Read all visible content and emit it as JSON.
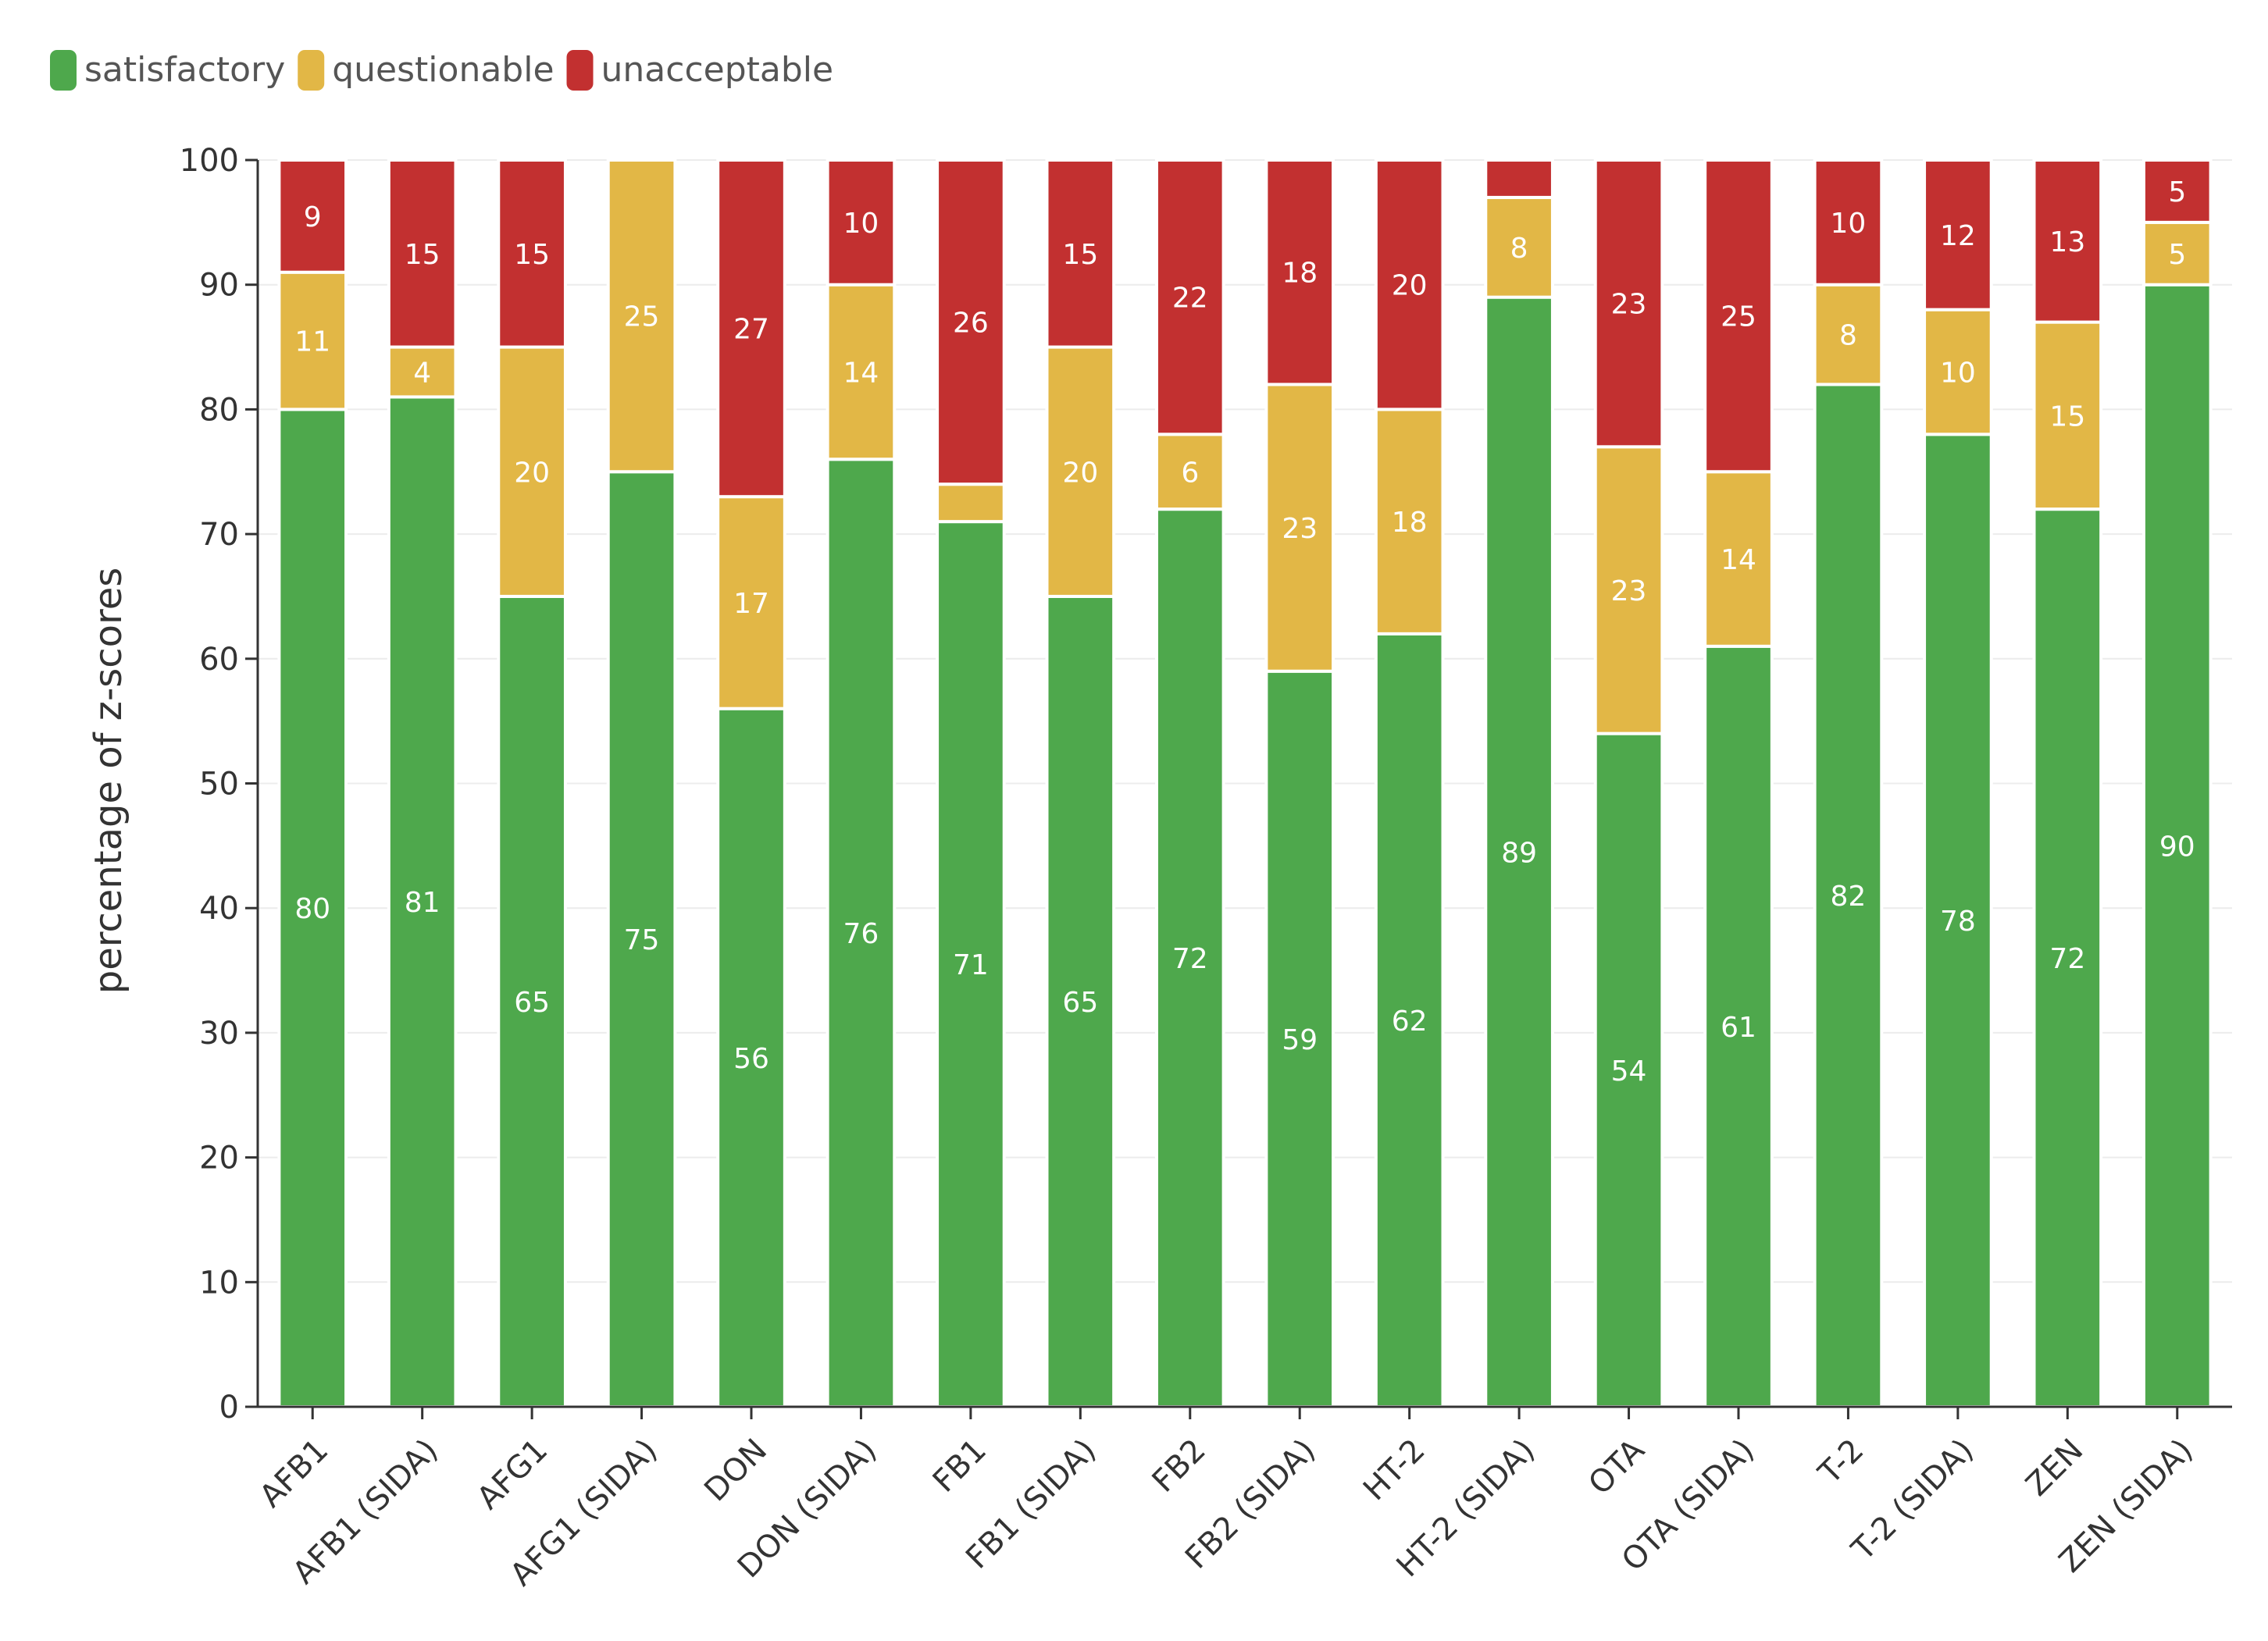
{
  "chart_data": {
    "type": "bar",
    "stacked": true,
    "title": "",
    "xlabel": "",
    "ylabel": "percentage of z-scores",
    "ylim": [
      0,
      100
    ],
    "yticks": [
      0,
      10,
      20,
      30,
      40,
      50,
      60,
      70,
      80,
      90,
      100
    ],
    "grid": "horizontal",
    "legend_position": "top-left",
    "categories": [
      "AFB1",
      "AFB1 (SIDA)",
      "AFG1",
      "AFG1 (SIDA)",
      "DON",
      "DON (SIDA)",
      "FB1",
      "FB1 (SIDA)",
      "FB2",
      "FB2 (SIDA)",
      "HT-2",
      "HT-2 (SIDA)",
      "OTA",
      "OTA (SIDA)",
      "T-2",
      "T-2 (SIDA)",
      "ZEN",
      "ZEN (SIDA)"
    ],
    "series": [
      {
        "name": "satisfactory",
        "color": "#4ea84c",
        "values": [
          80,
          81,
          65,
          75,
          56,
          76,
          71,
          65,
          72,
          59,
          62,
          89,
          54,
          61,
          82,
          78,
          72,
          90
        ],
        "labels": [
          "80",
          "81",
          "65",
          "75",
          "56",
          "76",
          "71",
          "65",
          "72",
          "59",
          "62",
          "89",
          "54",
          "61",
          "82",
          "78",
          "72",
          "90"
        ]
      },
      {
        "name": "questionable",
        "color": "#e2b746",
        "values": [
          11,
          4,
          20,
          25,
          17,
          14,
          3,
          20,
          6,
          23,
          18,
          8,
          23,
          14,
          8,
          10,
          15,
          5
        ],
        "labels": [
          "11",
          "4",
          "20",
          "25",
          "17",
          "14",
          "",
          "20",
          "6",
          "23",
          "18",
          "8",
          "23",
          "14",
          "8",
          "10",
          "15",
          "5"
        ]
      },
      {
        "name": "unacceptable",
        "color": "#c23030",
        "values": [
          9,
          15,
          15,
          0,
          27,
          10,
          26,
          15,
          22,
          18,
          20,
          3,
          23,
          25,
          10,
          12,
          13,
          5
        ],
        "labels": [
          "9",
          "15",
          "15",
          "",
          "27",
          "10",
          "26",
          "15",
          "22",
          "18",
          "20",
          "",
          "23",
          "25",
          "10",
          "12",
          "13",
          "5"
        ]
      }
    ]
  }
}
